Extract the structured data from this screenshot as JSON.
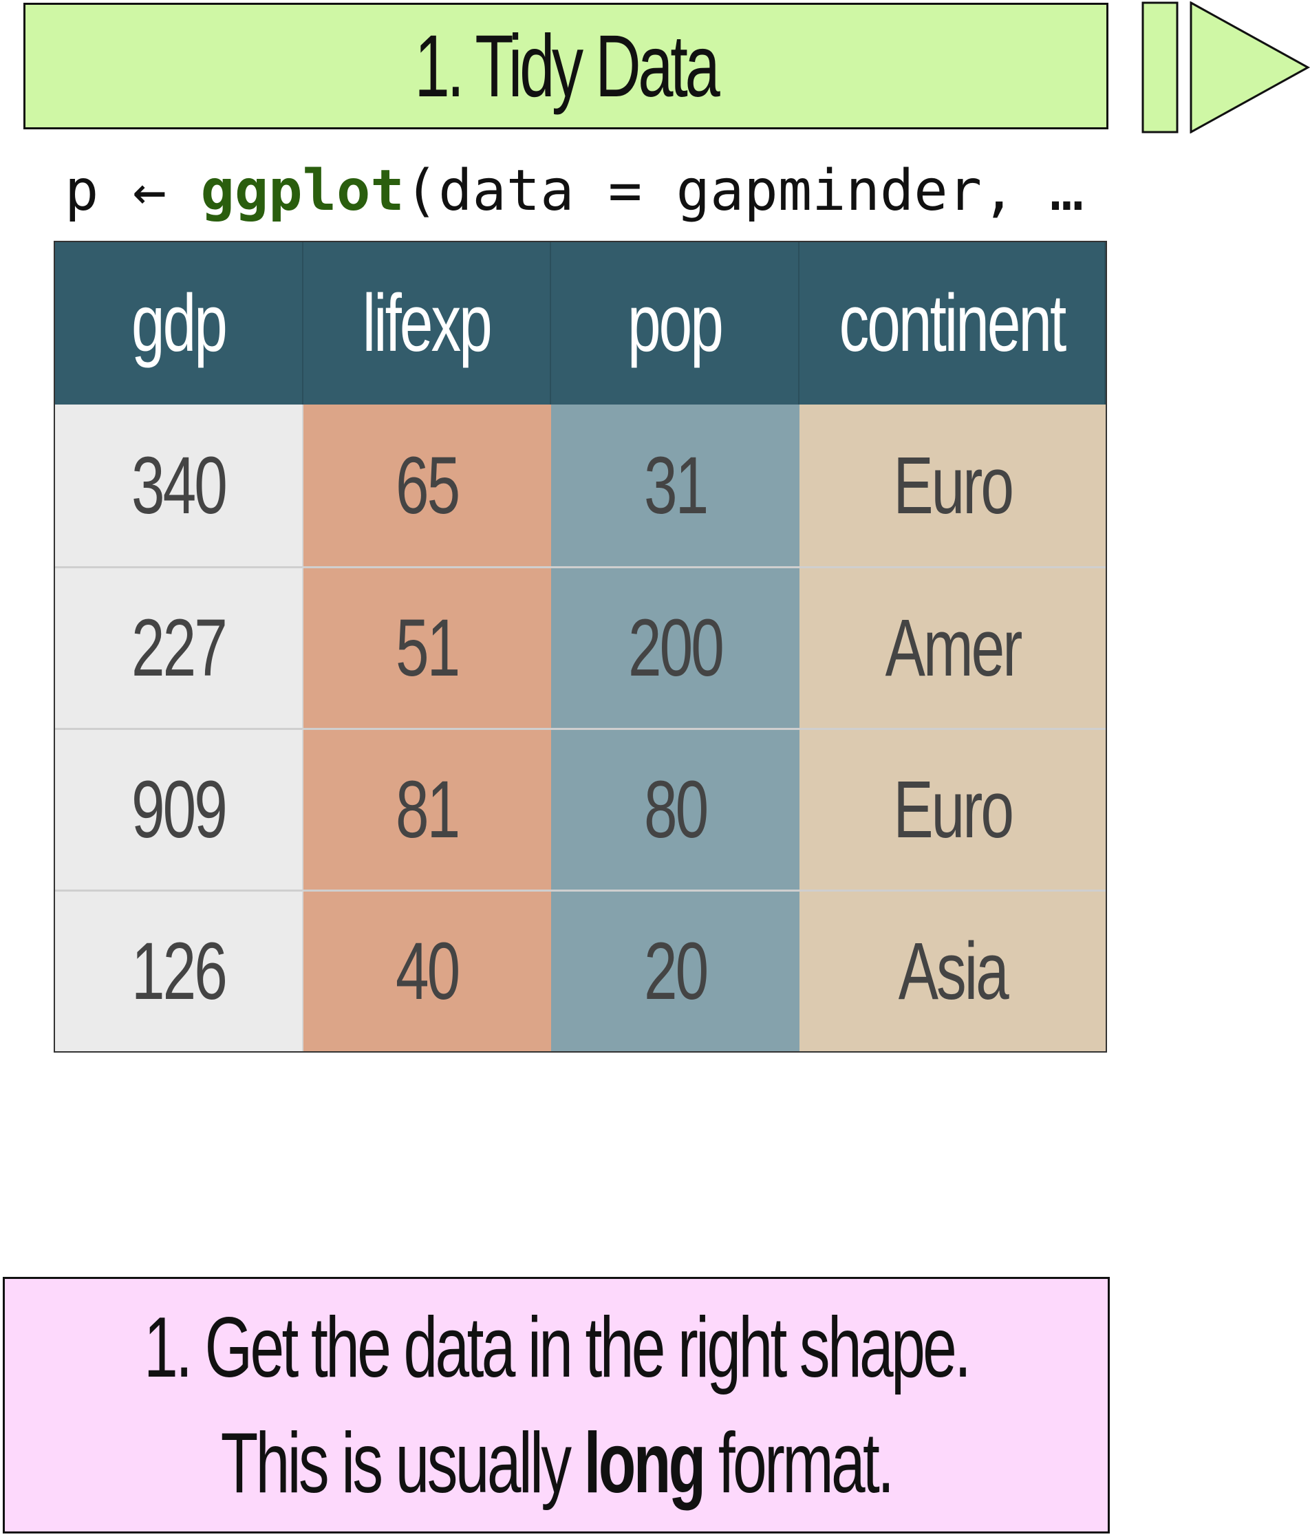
{
  "title": "1. Tidy Data",
  "code": {
    "prefix": "p ← ",
    "function": "ggplot",
    "args": "(data = gapminder, …"
  },
  "table": {
    "headers": [
      "gdp",
      "lifexp",
      "pop",
      "continent"
    ],
    "rows": [
      [
        "340",
        "65",
        "31",
        "Euro"
      ],
      [
        "227",
        "51",
        "200",
        "Amer"
      ],
      [
        "909",
        "81",
        "80",
        "Euro"
      ],
      [
        "126",
        "40",
        "20",
        "Asia"
      ]
    ]
  },
  "caption": {
    "line1": "1. Get the data in the right shape.",
    "line2_before": "This is usually ",
    "line2_bold": "long",
    "line2_after": " format."
  },
  "colors": {
    "title_bg": "#cff7a5",
    "header_bg": "#335c6b",
    "col_gdp": "#ebebeb",
    "col_lifexp": "#dca588",
    "col_pop": "#85a2ac",
    "col_continent": "#dccab0",
    "caption_bg": "#fdd9fc",
    "code_fn": "#2a5e0e"
  },
  "icons": [
    "step-forward-icon"
  ]
}
